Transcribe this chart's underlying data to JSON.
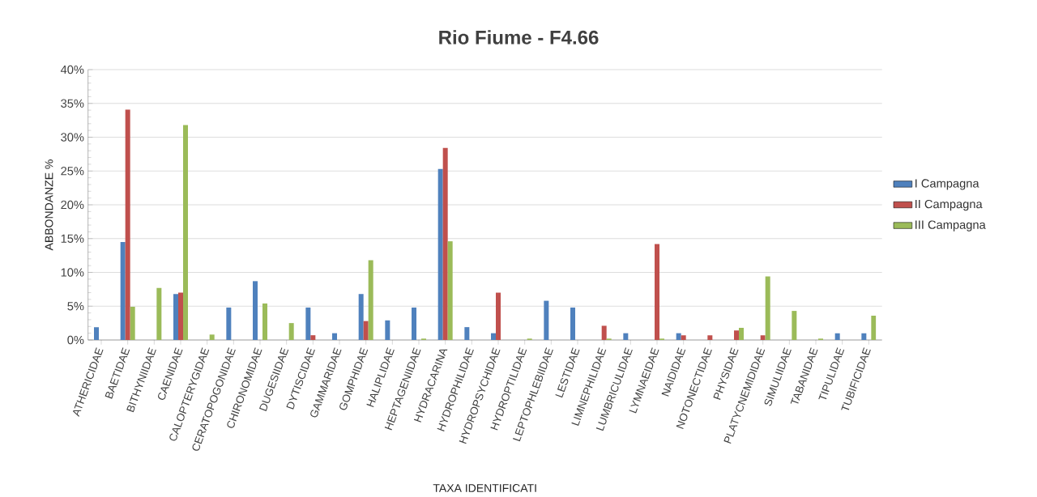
{
  "chart_data": {
    "type": "bar",
    "title": "Rio Fiume - F4.66",
    "xlabel": "TAXA IDENTIFICATI",
    "ylabel": "ABBONDANZE %",
    "categories": [
      "ATHERICIDAE",
      "BAETIDAE",
      "BITHYNIIDAE",
      "CAENIDAE",
      "CALOPTERYGIDAE",
      "CERATOPOGONIDAE",
      "CHIRONOMIDAE",
      "DUGESIIDAE",
      "DYTISCIDAE",
      "GAMMARIDAE",
      "GOMPHIDAE",
      "HALIPLIDAE",
      "HEPTAGENIIDAE",
      "HYDRACARINA",
      "HYDROPHILIDAE",
      "HYDROPSYCHIDAE",
      "HYDROPTILIDAE",
      "LEPTOPHLEBIIDAE",
      "LESTIDAE",
      "LIMNEPHILIDAE",
      "LUMBRICULIDAE",
      "LYMNAEIDAE",
      "NAIDIDAE",
      "NOTONECTIDAE",
      "PHYSIDAE",
      "PLATYCNEMIDIDAE",
      "SIMULIIDAE",
      "TABANIDAE",
      "TIPULIDAE",
      "TUBIFICIDAE"
    ],
    "series": [
      {
        "name": "I Campagna",
        "color": "#4f81bd",
        "values": [
          1.9,
          14.5,
          null,
          6.8,
          null,
          4.8,
          8.7,
          null,
          4.8,
          1.0,
          6.8,
          2.9,
          4.8,
          25.3,
          1.9,
          1.0,
          null,
          5.8,
          4.8,
          null,
          1.0,
          null,
          1.0,
          null,
          null,
          null,
          null,
          null,
          1.0,
          1.0
        ]
      },
      {
        "name": "II Campagna",
        "color": "#c0504d",
        "values": [
          null,
          34.1,
          null,
          7.0,
          null,
          null,
          null,
          null,
          0.7,
          null,
          2.8,
          null,
          null,
          28.4,
          null,
          7.0,
          null,
          null,
          null,
          2.1,
          null,
          14.2,
          0.7,
          0.7,
          1.4,
          0.7,
          null,
          null,
          null,
          null
        ]
      },
      {
        "name": "III Campagna",
        "color": "#9bbb59",
        "values": [
          null,
          4.9,
          7.7,
          31.8,
          0.8,
          null,
          5.4,
          2.5,
          null,
          null,
          11.8,
          null,
          0.2,
          14.6,
          null,
          null,
          0.2,
          null,
          null,
          0.2,
          null,
          0.2,
          null,
          null,
          1.8,
          9.4,
          4.3,
          0.2,
          null,
          3.6
        ]
      }
    ],
    "ylim": [
      0,
      40
    ],
    "yticks": [
      {
        "value": 0,
        "label": "0%"
      },
      {
        "value": 5,
        "label": "5%"
      },
      {
        "value": 10,
        "label": "10%"
      },
      {
        "value": 15,
        "label": "15%"
      },
      {
        "value": 20,
        "label": "20%"
      },
      {
        "value": 25,
        "label": "25%"
      },
      {
        "value": 30,
        "label": "30%"
      },
      {
        "value": 35,
        "label": "35%"
      },
      {
        "value": 40,
        "label": "40%"
      }
    ],
    "grid": "y",
    "legend": "right"
  }
}
